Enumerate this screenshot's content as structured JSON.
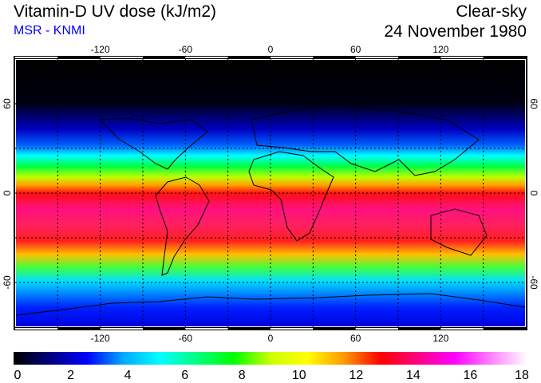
{
  "header": {
    "title": "Vitamin-D UV dose (kJ/m2)",
    "source": "MSR - KNMI",
    "condition": "Clear-sky",
    "date": "24 November 1980"
  },
  "map": {
    "lon_ticks": [
      "-120",
      "-60",
      "0",
      "60",
      "120"
    ],
    "lat_ticks": [
      "60",
      "0",
      "-60"
    ],
    "lon_range": [
      -180,
      180
    ],
    "lat_range": [
      -90,
      90
    ],
    "grid_spacing_deg": 30
  },
  "colorbar": {
    "ticks": [
      "0",
      "2",
      "4",
      "6",
      "8",
      "10",
      "12",
      "14",
      "16",
      "18"
    ],
    "range": [
      0,
      18
    ],
    "colors": [
      "#000000",
      "#000080",
      "#0000ff",
      "#00aaff",
      "#00ffff",
      "#00ff80",
      "#00ff00",
      "#ccff00",
      "#ffff00",
      "#ff9900",
      "#ff0000",
      "#ff0080",
      "#ff00ff",
      "#ff80ff",
      "#ffffff"
    ]
  }
}
